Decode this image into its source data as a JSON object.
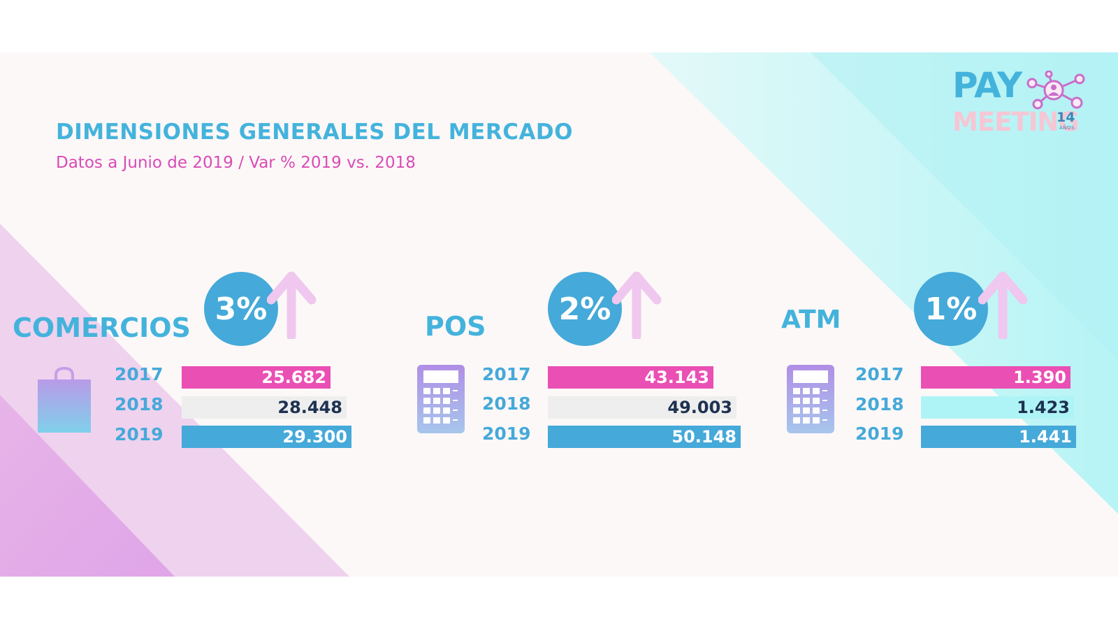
{
  "header": {
    "title": "DIMENSIONES GENERALES DEL MERCADO",
    "subtitle": "Datos a Junio de 2019 / Var % 2019 vs. 2018"
  },
  "logo": {
    "line1": "PAY",
    "line2": "MEETING",
    "badge": "14",
    "badge_small": "AÑOS"
  },
  "colors": {
    "pink": "#ea4fb4",
    "light_gray": "#eeeeee",
    "blue": "#45a9d9",
    "cyan_light": "#aef4f6",
    "title_blue": "#44b3dc",
    "subtitle_pink": "#d94bb6"
  },
  "chart_data": [
    {
      "type": "bar",
      "title": "COMERCIOS",
      "variation": "3%",
      "icon": "shopping-bag-icon",
      "categories": [
        "2017",
        "2018",
        "2019"
      ],
      "values": [
        25682,
        28448,
        29300
      ],
      "value_labels": [
        "25.682",
        "28.448",
        "29.300"
      ],
      "bar_colors": [
        "#ea4fb4",
        "#eeeeee",
        "#45a9d9"
      ]
    },
    {
      "type": "bar",
      "title": "POS",
      "variation": "2%",
      "icon": "calculator-icon",
      "categories": [
        "2017",
        "2018",
        "2019"
      ],
      "values": [
        43143,
        49003,
        50148
      ],
      "value_labels": [
        "43.143",
        "49.003",
        "50.148"
      ],
      "bar_colors": [
        "#ea4fb4",
        "#eeeeee",
        "#45a9d9"
      ]
    },
    {
      "type": "bar",
      "title": "ATM",
      "variation": "1%",
      "icon": "calculator-icon",
      "categories": [
        "2017",
        "2018",
        "2019"
      ],
      "values": [
        1390,
        1423,
        1441
      ],
      "value_labels": [
        "1.390",
        "1.423",
        "1.441"
      ],
      "bar_colors": [
        "#ea4fb4",
        "#aef4f6",
        "#45a9d9"
      ]
    }
  ]
}
